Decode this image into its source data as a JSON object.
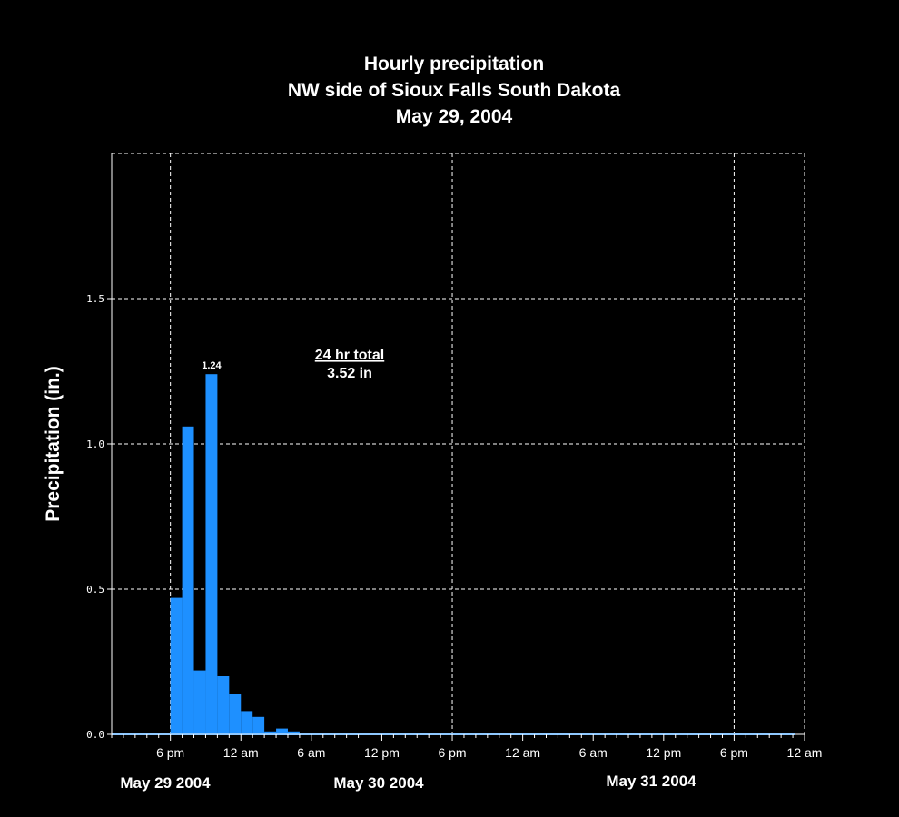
{
  "chart_data": {
    "type": "bar",
    "title": [
      "Hourly precipitation",
      "NW side of Sioux Falls South Dakota",
      "May 29, 2004"
    ],
    "ylabel": "Precipitation (in.)",
    "ylim": [
      0,
      2.0
    ],
    "yticks": [
      0.0,
      0.5,
      1.0,
      1.5
    ],
    "ytick_labels": [
      "0.0",
      "0.5",
      "1.0",
      "1.5"
    ],
    "x_range": [
      "2004-05-29 13:00",
      "2004-05-31 24:00"
    ],
    "xticks": [
      "2004-05-29 18:00",
      "2004-05-30 00:00",
      "2004-05-30 06:00",
      "2004-05-30 12:00",
      "2004-05-30 18:00",
      "2004-05-31 00:00",
      "2004-05-31 06:00",
      "2004-05-31 12:00",
      "2004-05-31 18:00",
      "2004-06-01 00:00"
    ],
    "xtick_labels": [
      "6 pm",
      "12 am",
      "6 am",
      "12 pm",
      "6 pm",
      "12 am",
      "6 am",
      "12 pm",
      "6 pm",
      "12 am"
    ],
    "date_labels": [
      "May 29 2004",
      "May 30 2004",
      "May 31 2004"
    ],
    "vertical_grid_at": [
      "2004-05-29 18:00",
      "2004-05-30 18:00",
      "2004-05-31 18:00"
    ],
    "grid": true,
    "bar_color": "#1E90FF",
    "bars": [
      {
        "start": "2004-05-29 18:00",
        "value": 0.47
      },
      {
        "start": "2004-05-29 19:00",
        "value": 1.06
      },
      {
        "start": "2004-05-29 20:00",
        "value": 0.22
      },
      {
        "start": "2004-05-29 21:00",
        "value": 1.24,
        "label": "1.24"
      },
      {
        "start": "2004-05-29 22:00",
        "value": 0.2
      },
      {
        "start": "2004-05-29 23:00",
        "value": 0.14
      },
      {
        "start": "2004-05-30 00:00",
        "value": 0.08
      },
      {
        "start": "2004-05-30 01:00",
        "value": 0.06
      },
      {
        "start": "2004-05-30 02:00",
        "value": 0.01
      },
      {
        "start": "2004-05-30 03:00",
        "value": 0.02
      },
      {
        "start": "2004-05-30 04:00",
        "value": 0.01
      }
    ],
    "annotation": {
      "heading": "24 hr total",
      "value": "3.52 in"
    }
  }
}
